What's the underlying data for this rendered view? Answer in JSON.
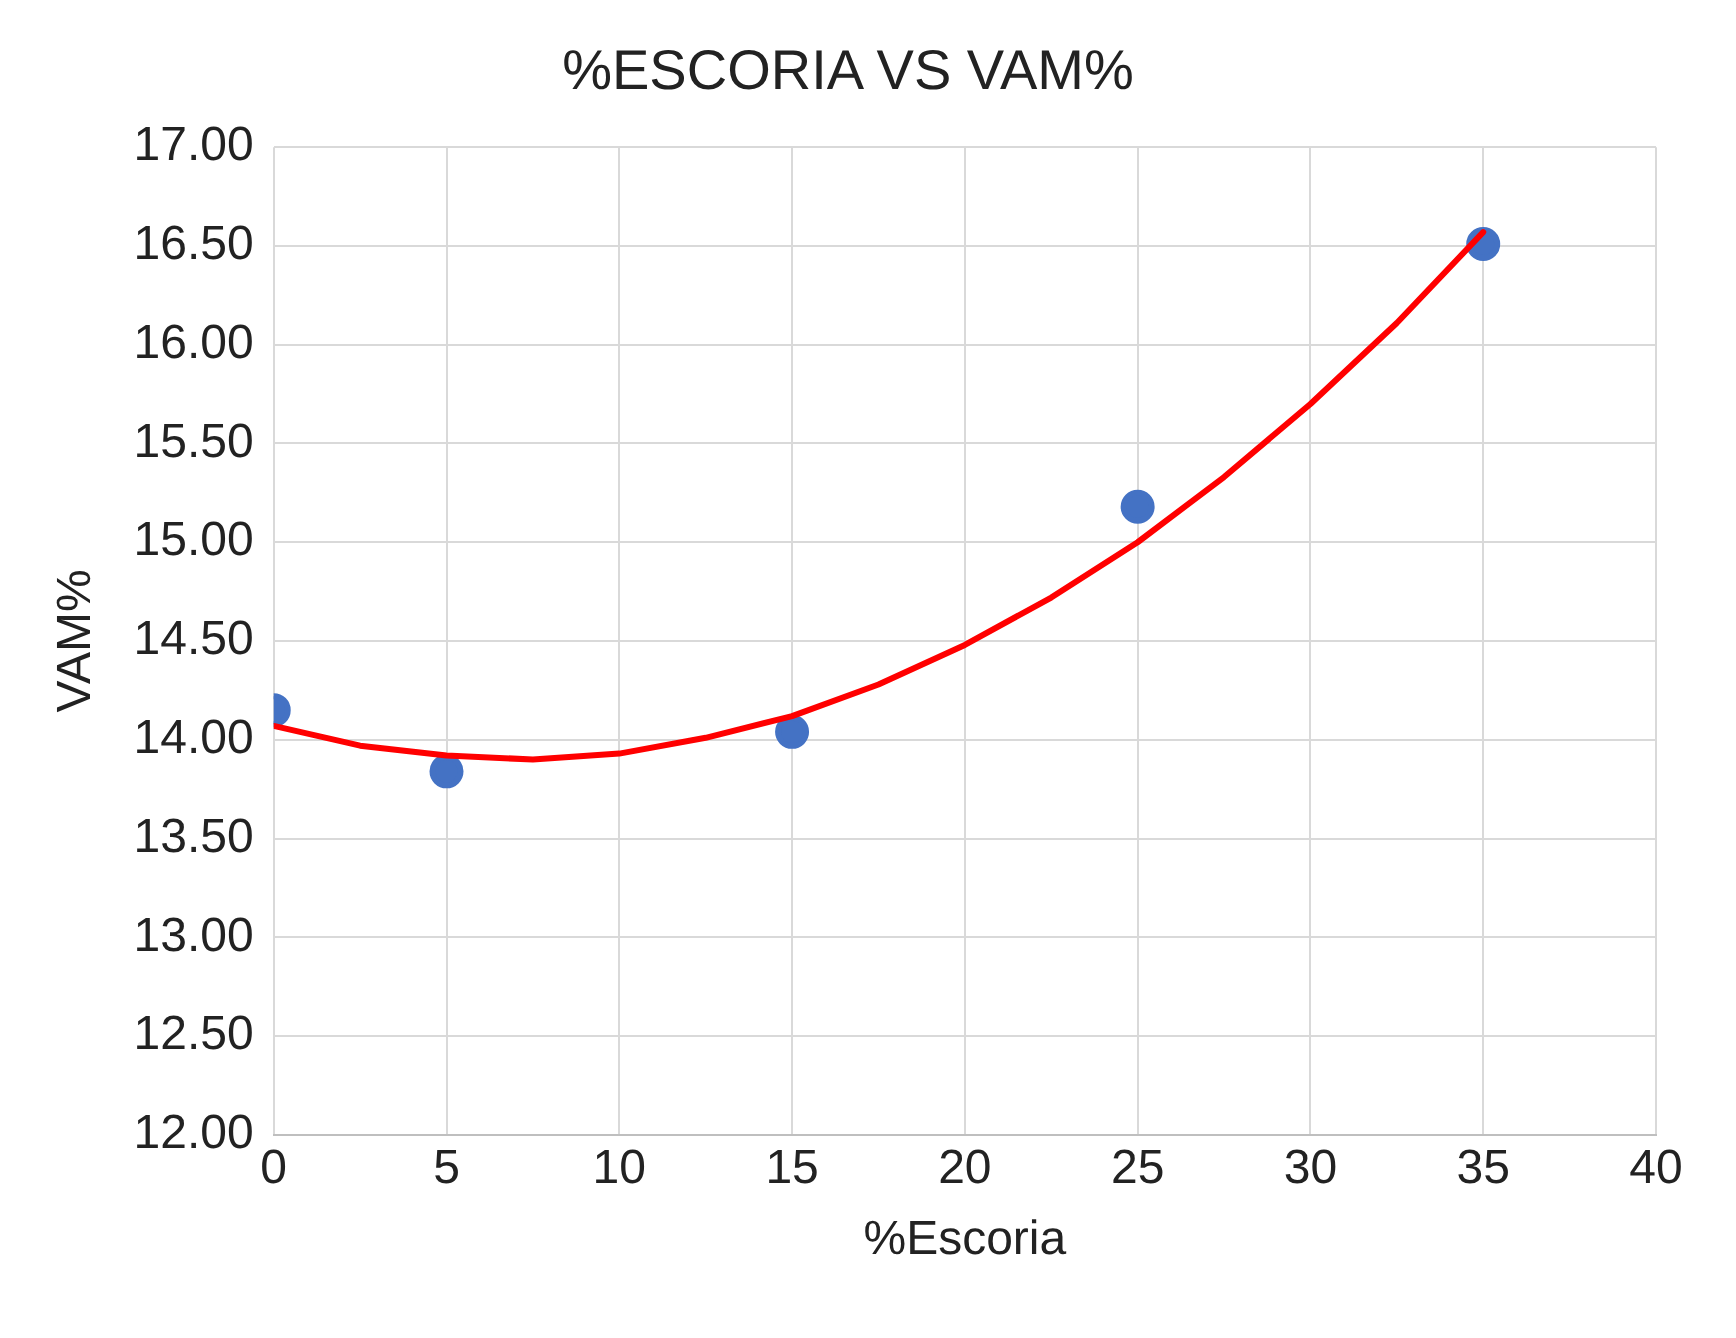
{
  "chart_data": {
    "type": "scatter",
    "title": "%ESCORIA VS VAM%",
    "xlabel": "%Escoria",
    "ylabel": "VAM%",
    "series": [
      {
        "color": "#4472c4",
        "marker": "circle",
        "x": [
          0,
          5,
          15,
          25,
          35
        ],
        "values": [
          14.15,
          13.84,
          14.04,
          15.18,
          16.51
        ]
      },
      {
        "type": "line",
        "color": "#ff0000",
        "marker": "none",
        "x": [
          0,
          2.5,
          5,
          7.5,
          10,
          12.5,
          15,
          17.5,
          20,
          22.5,
          25,
          27.5,
          30,
          32.5,
          35
        ],
        "values": [
          14.07,
          13.97,
          13.92,
          13.9,
          13.93,
          14.01,
          14.12,
          14.28,
          14.48,
          14.72,
          15.0,
          15.33,
          15.7,
          16.11,
          16.57
        ]
      }
    ],
    "xlim": [
      0,
      40
    ],
    "xticks": [
      0,
      5,
      10,
      15,
      20,
      25,
      30,
      35,
      40
    ],
    "ylim": [
      12,
      17
    ],
    "yticks": [
      {
        "value": 12,
        "label": "12.00"
      },
      {
        "value": 12.5,
        "label": "12.50"
      },
      {
        "value": 13,
        "label": "13.00"
      },
      {
        "value": 13.5,
        "label": "13.50"
      },
      {
        "value": 14,
        "label": "14.00"
      },
      {
        "value": 14.5,
        "label": "14.50"
      },
      {
        "value": 15,
        "label": "15.00"
      },
      {
        "value": 15.5,
        "label": "15.50"
      },
      {
        "value": 16,
        "label": "16.00"
      },
      {
        "value": 16.5,
        "label": "16.50"
      },
      {
        "value": 17,
        "label": "17.00"
      }
    ],
    "grid": true,
    "legend": false
  }
}
